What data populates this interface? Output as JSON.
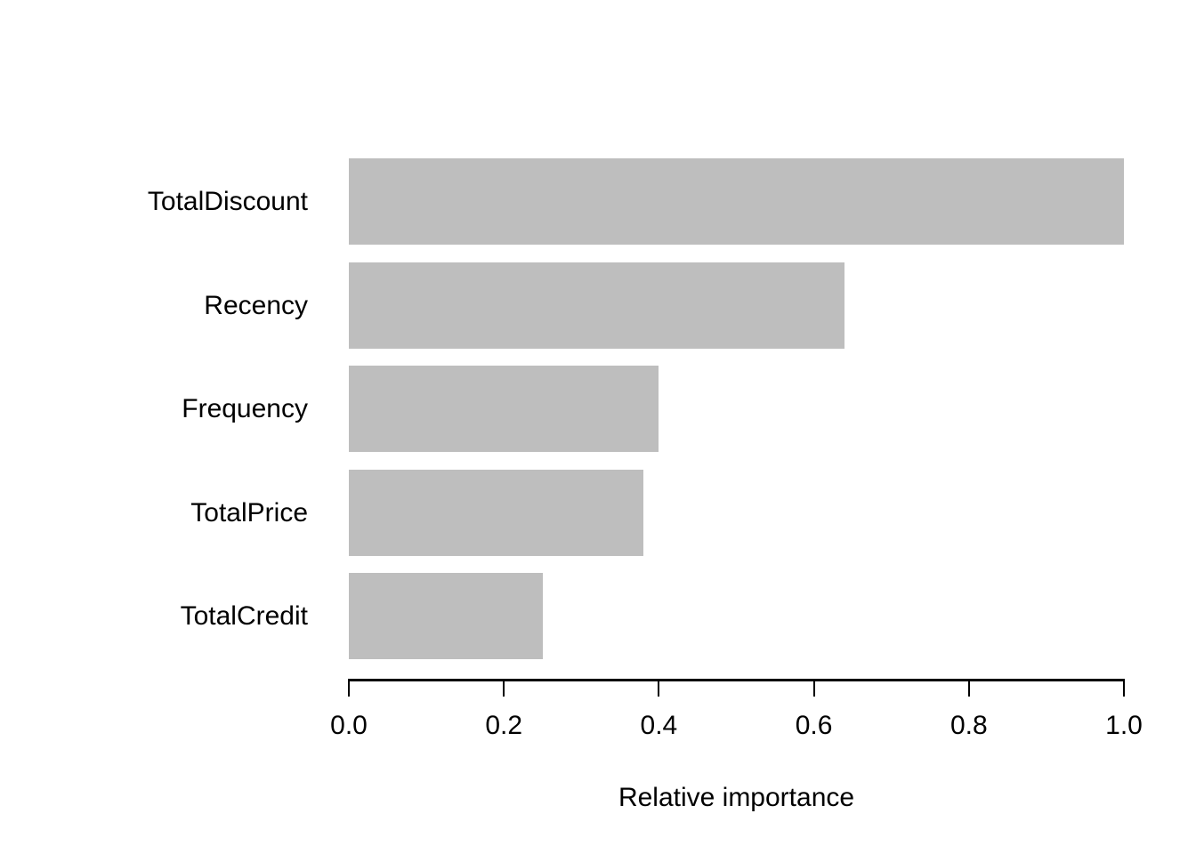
{
  "figure": {
    "background_color": "#ffffff",
    "text_color": "#000000",
    "axis_color": "#000000"
  },
  "chart_data": {
    "type": "bar",
    "orientation": "horizontal",
    "title": "",
    "xlabel": "Relative importance",
    "ylabel": "",
    "categories": [
      "TotalDiscount",
      "Recency",
      "Frequency",
      "TotalPrice",
      "TotalCredit"
    ],
    "values": [
      1.0,
      0.64,
      0.4,
      0.38,
      0.25
    ],
    "xlim": [
      0.0,
      1.0
    ],
    "x_ticks": [
      0.0,
      0.2,
      0.4,
      0.6,
      0.8,
      1.0
    ],
    "x_tick_labels": [
      "0.0",
      "0.2",
      "0.4",
      "0.6",
      "0.8",
      "1.0"
    ],
    "bar_color": "#bebebe",
    "grid": false,
    "legend": "none"
  }
}
